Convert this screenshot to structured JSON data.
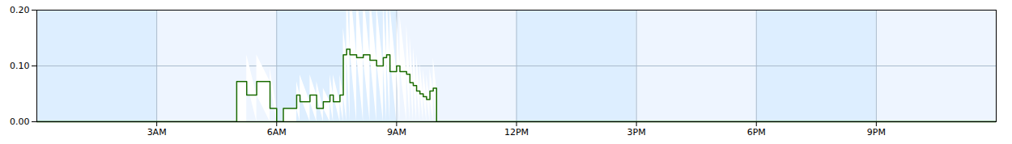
{
  "chart_data": {
    "type": "line",
    "x": [
      0,
      300,
      300,
      315,
      315,
      330,
      330,
      350,
      350,
      360,
      360,
      370,
      370,
      390,
      390,
      395,
      395,
      410,
      410,
      420,
      420,
      430,
      430,
      440,
      440,
      445,
      445,
      455,
      455,
      460,
      460,
      465,
      465,
      470,
      470,
      480,
      480,
      490,
      490,
      500,
      500,
      510,
      510,
      520,
      520,
      525,
      525,
      530,
      530,
      540,
      540,
      545,
      545,
      555,
      555,
      560,
      560,
      565,
      565,
      570,
      570,
      575,
      575,
      580,
      580,
      585,
      585,
      590,
      590,
      595,
      595,
      600,
      600,
      1440
    ],
    "values": [
      0,
      0,
      0.072,
      0.072,
      0.048,
      0.048,
      0.072,
      0.072,
      0.024,
      0.024,
      0.0,
      0.0,
      0.024,
      0.024,
      0.048,
      0.048,
      0.036,
      0.036,
      0.048,
      0.048,
      0.024,
      0.024,
      0.036,
      0.036,
      0.048,
      0.048,
      0.036,
      0.036,
      0.048,
      0.048,
      0.12,
      0.12,
      0.13,
      0.13,
      0.12,
      0.12,
      0.115,
      0.115,
      0.12,
      0.12,
      0.11,
      0.11,
      0.1,
      0.1,
      0.115,
      0.115,
      0.12,
      0.12,
      0.09,
      0.09,
      0.1,
      0.1,
      0.09,
      0.09,
      0.085,
      0.085,
      0.07,
      0.07,
      0.065,
      0.065,
      0.055,
      0.055,
      0.05,
      0.05,
      0.045,
      0.045,
      0.04,
      0.04,
      0.055,
      0.055,
      0.06,
      0.06,
      0.0,
      0.0
    ],
    "color": "#1a6b00",
    "xlim": [
      0,
      1440
    ],
    "xticks": [
      {
        "value": 180,
        "label": "3AM"
      },
      {
        "value": 360,
        "label": "6AM"
      },
      {
        "value": 540,
        "label": "9AM"
      },
      {
        "value": 720,
        "label": "12PM"
      },
      {
        "value": 900,
        "label": "3PM"
      },
      {
        "value": 1080,
        "label": "6PM"
      },
      {
        "value": 1260,
        "label": "9PM"
      }
    ],
    "ylim": [
      0.0,
      0.2
    ],
    "yticks": [
      {
        "value": 0.0,
        "label": "0.00"
      },
      {
        "value": 0.1,
        "label": "0.10"
      },
      {
        "value": 0.2,
        "label": "0.20"
      }
    ],
    "grid": true
  }
}
